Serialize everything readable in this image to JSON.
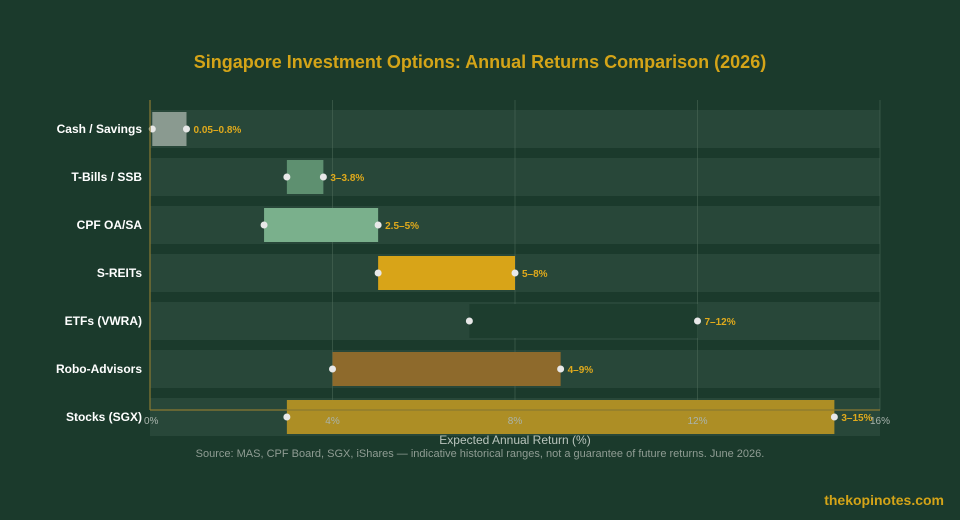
{
  "chart_data": {
    "type": "bar",
    "orientation": "horizontal-range",
    "title": "Singapore Investment Options: Annual Returns Comparison (2026)",
    "xlabel": "Expected Annual Return (%)",
    "xlim": [
      0,
      16
    ],
    "xticks": [
      {
        "value": 0,
        "label": "0%"
      },
      {
        "value": 4,
        "label": "4%"
      },
      {
        "value": 8,
        "label": "8%"
      },
      {
        "value": 12,
        "label": "12%"
      },
      {
        "value": 16,
        "label": "16%"
      }
    ],
    "grid": true,
    "categories": [
      {
        "name": "Cash / Savings",
        "low": 0.05,
        "high": 0.8,
        "label": "0.05–0.8%",
        "color": "#8a9a90"
      },
      {
        "name": "T-Bills / SSB",
        "low": 3,
        "high": 3.8,
        "label": "3–3.8%",
        "color": "#5e9070"
      },
      {
        "name": "CPF OA/SA",
        "low": 2.5,
        "high": 5,
        "label": "2.5–5%",
        "color": "#7ab08c"
      },
      {
        "name": "S-REITs",
        "low": 5,
        "high": 8,
        "label": "5–8%",
        "color": "#d8a418"
      },
      {
        "name": "ETFs (VWRA)",
        "low": 7,
        "high": 12,
        "label": "7–12%",
        "color": "#1d3d2e"
      },
      {
        "name": "Robo-Advisors",
        "low": 4,
        "high": 9,
        "label": "4–9%",
        "color": "#8e6a2c"
      },
      {
        "name": "Stocks (SGX)",
        "low": 3,
        "high": 15,
        "label": "3–15%",
        "color": "#ad8e25"
      }
    ],
    "colors": {
      "title": "#d4a418",
      "value_label": "#e0aa1c",
      "row_band": "#284739",
      "axis": "#8a7a32",
      "dot": "#e8e8e8"
    }
  },
  "footer": {
    "source": "Source: MAS, CPF Board, SGX, iShares — indicative historical ranges, not a guarantee of future returns. June 2026.",
    "brand": "thekopinotes.com"
  }
}
